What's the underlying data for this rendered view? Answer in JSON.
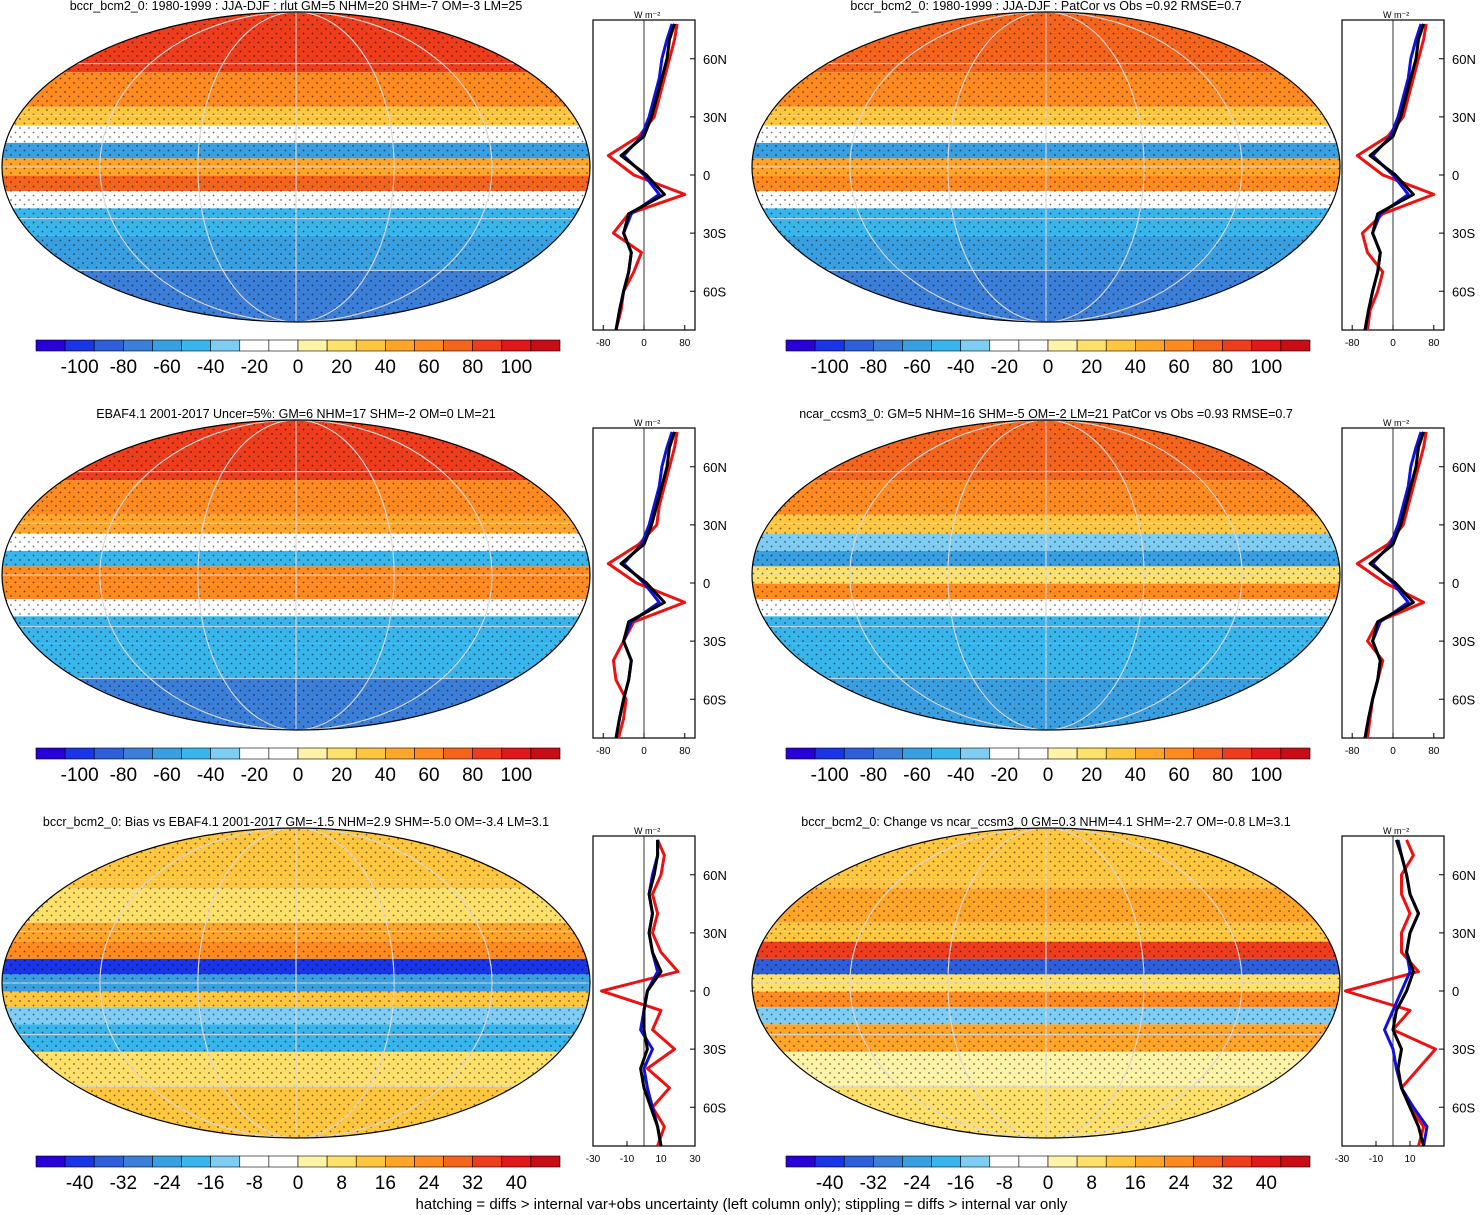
{
  "footer": "hatching = diffs > internal var+obs uncertainty (left column only); stippling = diffs > internal var only",
  "colors": {
    "palette": [
      "#2a00d8",
      "#1a35e6",
      "#2f5fd8",
      "#3b7fd9",
      "#3a9fe0",
      "#38b6ec",
      "#7fcdf2",
      "#ffffff",
      "#ffffff",
      "#fff3a8",
      "#ffe06b",
      "#ffc63f",
      "#ffa62a",
      "#ff8a1f",
      "#f5641c",
      "#ee3d1d",
      "#e0171b",
      "#c80d17"
    ],
    "line_red": "#ee1111",
    "line_blue": "#1111dd",
    "line_black": "#000000"
  },
  "chart_data": [
    {
      "type": "heatmap",
      "title": "bccr_bcm2_0: 1980-1999 : JJA-DJF : rlut GM=5 NHM=20 SHM=-7 OM=-3 LM=25",
      "colorbar_labels": [
        "-100",
        "-80",
        "-60",
        "-40",
        "-20",
        "0",
        "20",
        "40",
        "60",
        "80",
        "100"
      ],
      "colorbar_range": [
        -100,
        100
      ],
      "lat_bands": [
        70,
        40,
        30,
        18,
        10,
        0,
        -10,
        -18,
        -30,
        -50,
        -70
      ],
      "band_values": [
        70,
        55,
        30,
        -10,
        -45,
        40,
        60,
        -10,
        -40,
        -45,
        -60
      ],
      "zonal": {
        "title": "W m⁻²",
        "xlim": [
          -100,
          100
        ],
        "xticks": [
          "-80",
          "0",
          "80"
        ],
        "ylim": [
          -80,
          80
        ],
        "yticks": [
          "60N",
          "30N",
          "0",
          "30S",
          "60S"
        ],
        "lat": [
          -80,
          -70,
          -60,
          -50,
          -40,
          -30,
          -20,
          -10,
          0,
          10,
          20,
          30,
          40,
          50,
          60,
          70,
          78
        ],
        "red": [
          -55,
          -45,
          -40,
          -20,
          -5,
          -60,
          -30,
          80,
          -20,
          -70,
          -10,
          20,
          30,
          40,
          50,
          60,
          65
        ],
        "blue": [
          -55,
          -48,
          -40,
          -30,
          -25,
          -40,
          -25,
          30,
          0,
          -40,
          -5,
          10,
          20,
          30,
          35,
          45,
          55
        ],
        "black": [
          -55,
          -48,
          -40,
          -30,
          -25,
          -40,
          -30,
          40,
          5,
          -45,
          0,
          15,
          25,
          35,
          45,
          50,
          60
        ]
      }
    },
    {
      "type": "heatmap",
      "title": "bccr_bcm2_0: 1980-1999 : JJA-DJF : PatCor vs Obs =0.92 RMSE=0.7",
      "colorbar_labels": [
        "-100",
        "-80",
        "-60",
        "-40",
        "-20",
        "0",
        "20",
        "40",
        "60",
        "80",
        "100"
      ],
      "colorbar_range": [
        -100,
        100
      ],
      "lat_bands": [
        70,
        40,
        30,
        18,
        10,
        0,
        -10,
        -18,
        -30,
        -50,
        -70
      ],
      "band_values": [
        65,
        55,
        30,
        -20,
        -50,
        35,
        55,
        -10,
        -40,
        -45,
        -60
      ],
      "zonal": {
        "title": "W m⁻²",
        "xlim": [
          -100,
          100
        ],
        "xticks": [
          "-80",
          "0",
          "80"
        ],
        "ylim": [
          -80,
          80
        ],
        "yticks": [
          "60N",
          "30N",
          "0",
          "30S",
          "60S"
        ],
        "lat": [
          -80,
          -70,
          -60,
          -50,
          -40,
          -30,
          -20,
          -10,
          0,
          10,
          20,
          30,
          40,
          50,
          60,
          70,
          78
        ],
        "red": [
          -50,
          -45,
          -30,
          -20,
          -50,
          -60,
          -20,
          80,
          -20,
          -70,
          -10,
          20,
          30,
          40,
          50,
          60,
          65
        ],
        "blue": [
          -55,
          -48,
          -40,
          -30,
          -25,
          -40,
          -25,
          30,
          0,
          -40,
          -5,
          10,
          20,
          30,
          35,
          45,
          55
        ],
        "black": [
          -55,
          -48,
          -40,
          -30,
          -25,
          -40,
          -30,
          40,
          5,
          -45,
          0,
          15,
          25,
          35,
          45,
          50,
          60
        ]
      }
    },
    {
      "type": "heatmap",
      "title": "EBAF4.1 2001-2017 Uncer=5%: GM=6 NHM=17 SHM=-2 OM=0 LM=21",
      "colorbar_labels": [
        "-100",
        "-80",
        "-60",
        "-40",
        "-20",
        "0",
        "20",
        "40",
        "60",
        "80",
        "100"
      ],
      "colorbar_range": [
        -100,
        100
      ],
      "lat_bands": [
        70,
        40,
        30,
        18,
        10,
        0,
        -10,
        -18,
        -30,
        -50,
        -70
      ],
      "band_values": [
        70,
        55,
        35,
        -15,
        -40,
        45,
        55,
        -10,
        -35,
        -40,
        -60
      ],
      "zonal": {
        "title": "W m⁻²",
        "xlim": [
          -100,
          100
        ],
        "xticks": [
          "-80",
          "0",
          "80"
        ],
        "ylim": [
          -80,
          80
        ],
        "yticks": [
          "60N",
          "30N",
          "0",
          "30S",
          "60S"
        ],
        "lat": [
          -80,
          -70,
          -60,
          -50,
          -40,
          -30,
          -20,
          -10,
          0,
          10,
          20,
          30,
          40,
          50,
          60,
          70,
          78
        ],
        "red": [
          -50,
          -40,
          -35,
          -55,
          -60,
          -40,
          -20,
          80,
          -15,
          -70,
          -10,
          25,
          30,
          40,
          50,
          60,
          65
        ],
        "blue": [
          -55,
          -48,
          -40,
          -30,
          -25,
          -40,
          -25,
          30,
          0,
          -40,
          -5,
          10,
          20,
          30,
          35,
          45,
          55
        ],
        "black": [
          -55,
          -48,
          -40,
          -30,
          -25,
          -40,
          -30,
          40,
          5,
          -45,
          0,
          15,
          25,
          35,
          45,
          50,
          60
        ]
      }
    },
    {
      "type": "heatmap",
      "title": "ncar_ccsm3_0: GM=5 NHM=16 SHM=-5 OM=-2 LM=21 PatCor vs Obs =0.93 RMSE=0.7",
      "colorbar_labels": [
        "-100",
        "-80",
        "-60",
        "-40",
        "-20",
        "0",
        "20",
        "40",
        "60",
        "80",
        "100"
      ],
      "colorbar_range": [
        -100,
        100
      ],
      "lat_bands": [
        70,
        40,
        30,
        18,
        10,
        0,
        -10,
        -18,
        -30,
        -50,
        -70
      ],
      "band_values": [
        65,
        55,
        30,
        -30,
        -50,
        20,
        50,
        -10,
        -35,
        -40,
        -55
      ],
      "zonal": {
        "title": "W m⁻²",
        "xlim": [
          -100,
          100
        ],
        "xticks": [
          "-80",
          "0",
          "80"
        ],
        "ylim": [
          -80,
          80
        ],
        "yticks": [
          "60N",
          "30N",
          "0",
          "30S",
          "60S"
        ],
        "lat": [
          -80,
          -70,
          -60,
          -50,
          -40,
          -30,
          -20,
          -10,
          0,
          10,
          20,
          30,
          40,
          50,
          60,
          70,
          78
        ],
        "red": [
          -50,
          -45,
          -40,
          -30,
          -20,
          -50,
          -30,
          60,
          -15,
          -70,
          -10,
          20,
          30,
          40,
          50,
          60,
          65
        ],
        "blue": [
          -55,
          -48,
          -40,
          -30,
          -25,
          -40,
          -25,
          30,
          0,
          -40,
          -5,
          10,
          20,
          30,
          35,
          45,
          55
        ],
        "black": [
          -55,
          -48,
          -40,
          -30,
          -25,
          -40,
          -30,
          40,
          5,
          -45,
          0,
          15,
          25,
          35,
          45,
          50,
          60
        ]
      }
    },
    {
      "type": "heatmap",
      "title": "bccr_bcm2_0: Bias vs EBAF4.1 2001-2017 GM=-1.5 NHM=2.9 SHM=-5.0 OM=-3.4 LM=3.1",
      "colorbar_labels": [
        "-40",
        "-32",
        "-24",
        "-16",
        "-8",
        "0",
        "8",
        "16",
        "24",
        "32",
        "40"
      ],
      "colorbar_range": [
        -40,
        40
      ],
      "lat_bands": [
        70,
        40,
        30,
        18,
        10,
        0,
        -10,
        -18,
        -30,
        -50,
        -70
      ],
      "band_values": [
        10,
        5,
        15,
        20,
        -35,
        -20,
        10,
        -10,
        -15,
        5,
        10
      ],
      "zonal": {
        "title": "W m⁻²",
        "xlim": [
          -30,
          30
        ],
        "xticks": [
          "-30",
          "-10",
          "10",
          "30"
        ],
        "ylim": [
          -80,
          80
        ],
        "yticks": [
          "60N",
          "30N",
          "0",
          "30S",
          "60S"
        ],
        "lat": [
          -80,
          -70,
          -60,
          -50,
          -40,
          -30,
          -20,
          -10,
          0,
          10,
          20,
          30,
          40,
          50,
          60,
          70,
          78
        ],
        "red": [
          8,
          12,
          5,
          15,
          2,
          18,
          5,
          10,
          -25,
          20,
          10,
          5,
          8,
          5,
          10,
          12,
          8
        ],
        "blue": [
          10,
          8,
          5,
          2,
          0,
          5,
          -2,
          0,
          2,
          8,
          5,
          3,
          5,
          3,
          5,
          8,
          8
        ],
        "black": [
          10,
          8,
          4,
          0,
          -2,
          2,
          0,
          0,
          2,
          10,
          5,
          3,
          5,
          3,
          6,
          8,
          8
        ]
      }
    },
    {
      "type": "heatmap",
      "title": "bccr_bcm2_0: Change vs ncar_ccsm3_0 GM=0.3 NHM=4.1 SHM=-2.7 OM=-0.8 LM=3.1",
      "colorbar_labels": [
        "-40",
        "-32",
        "-24",
        "-16",
        "-8",
        "0",
        "8",
        "16",
        "24",
        "32",
        "40"
      ],
      "colorbar_range": [
        -40,
        40
      ],
      "lat_bands": [
        70,
        40,
        30,
        18,
        10,
        0,
        -10,
        -18,
        -30,
        -50,
        -70
      ],
      "band_values": [
        10,
        15,
        10,
        30,
        -30,
        5,
        20,
        -10,
        15,
        0,
        5
      ],
      "zonal": {
        "title": "W m⁻²",
        "xlim": [
          -30,
          30
        ],
        "xticks": [
          "-30",
          "-10",
          "10"
        ],
        "ylim": [
          -80,
          80
        ],
        "yticks": [
          "60N",
          "30N",
          "0",
          "30S",
          "60S"
        ],
        "lat": [
          -80,
          -70,
          -60,
          -50,
          -40,
          -30,
          -20,
          -10,
          0,
          10,
          20,
          30,
          40,
          50,
          60,
          70,
          78
        ],
        "red": [
          15,
          18,
          10,
          5,
          15,
          25,
          0,
          10,
          -28,
          15,
          5,
          5,
          10,
          5,
          5,
          12,
          8
        ],
        "blue": [
          18,
          20,
          12,
          5,
          2,
          0,
          -5,
          0,
          5,
          10,
          8,
          10,
          15,
          10,
          8,
          5,
          3
        ],
        "black": [
          18,
          15,
          10,
          5,
          3,
          5,
          0,
          2,
          8,
          12,
          8,
          10,
          15,
          10,
          8,
          5,
          2
        ]
      }
    }
  ]
}
